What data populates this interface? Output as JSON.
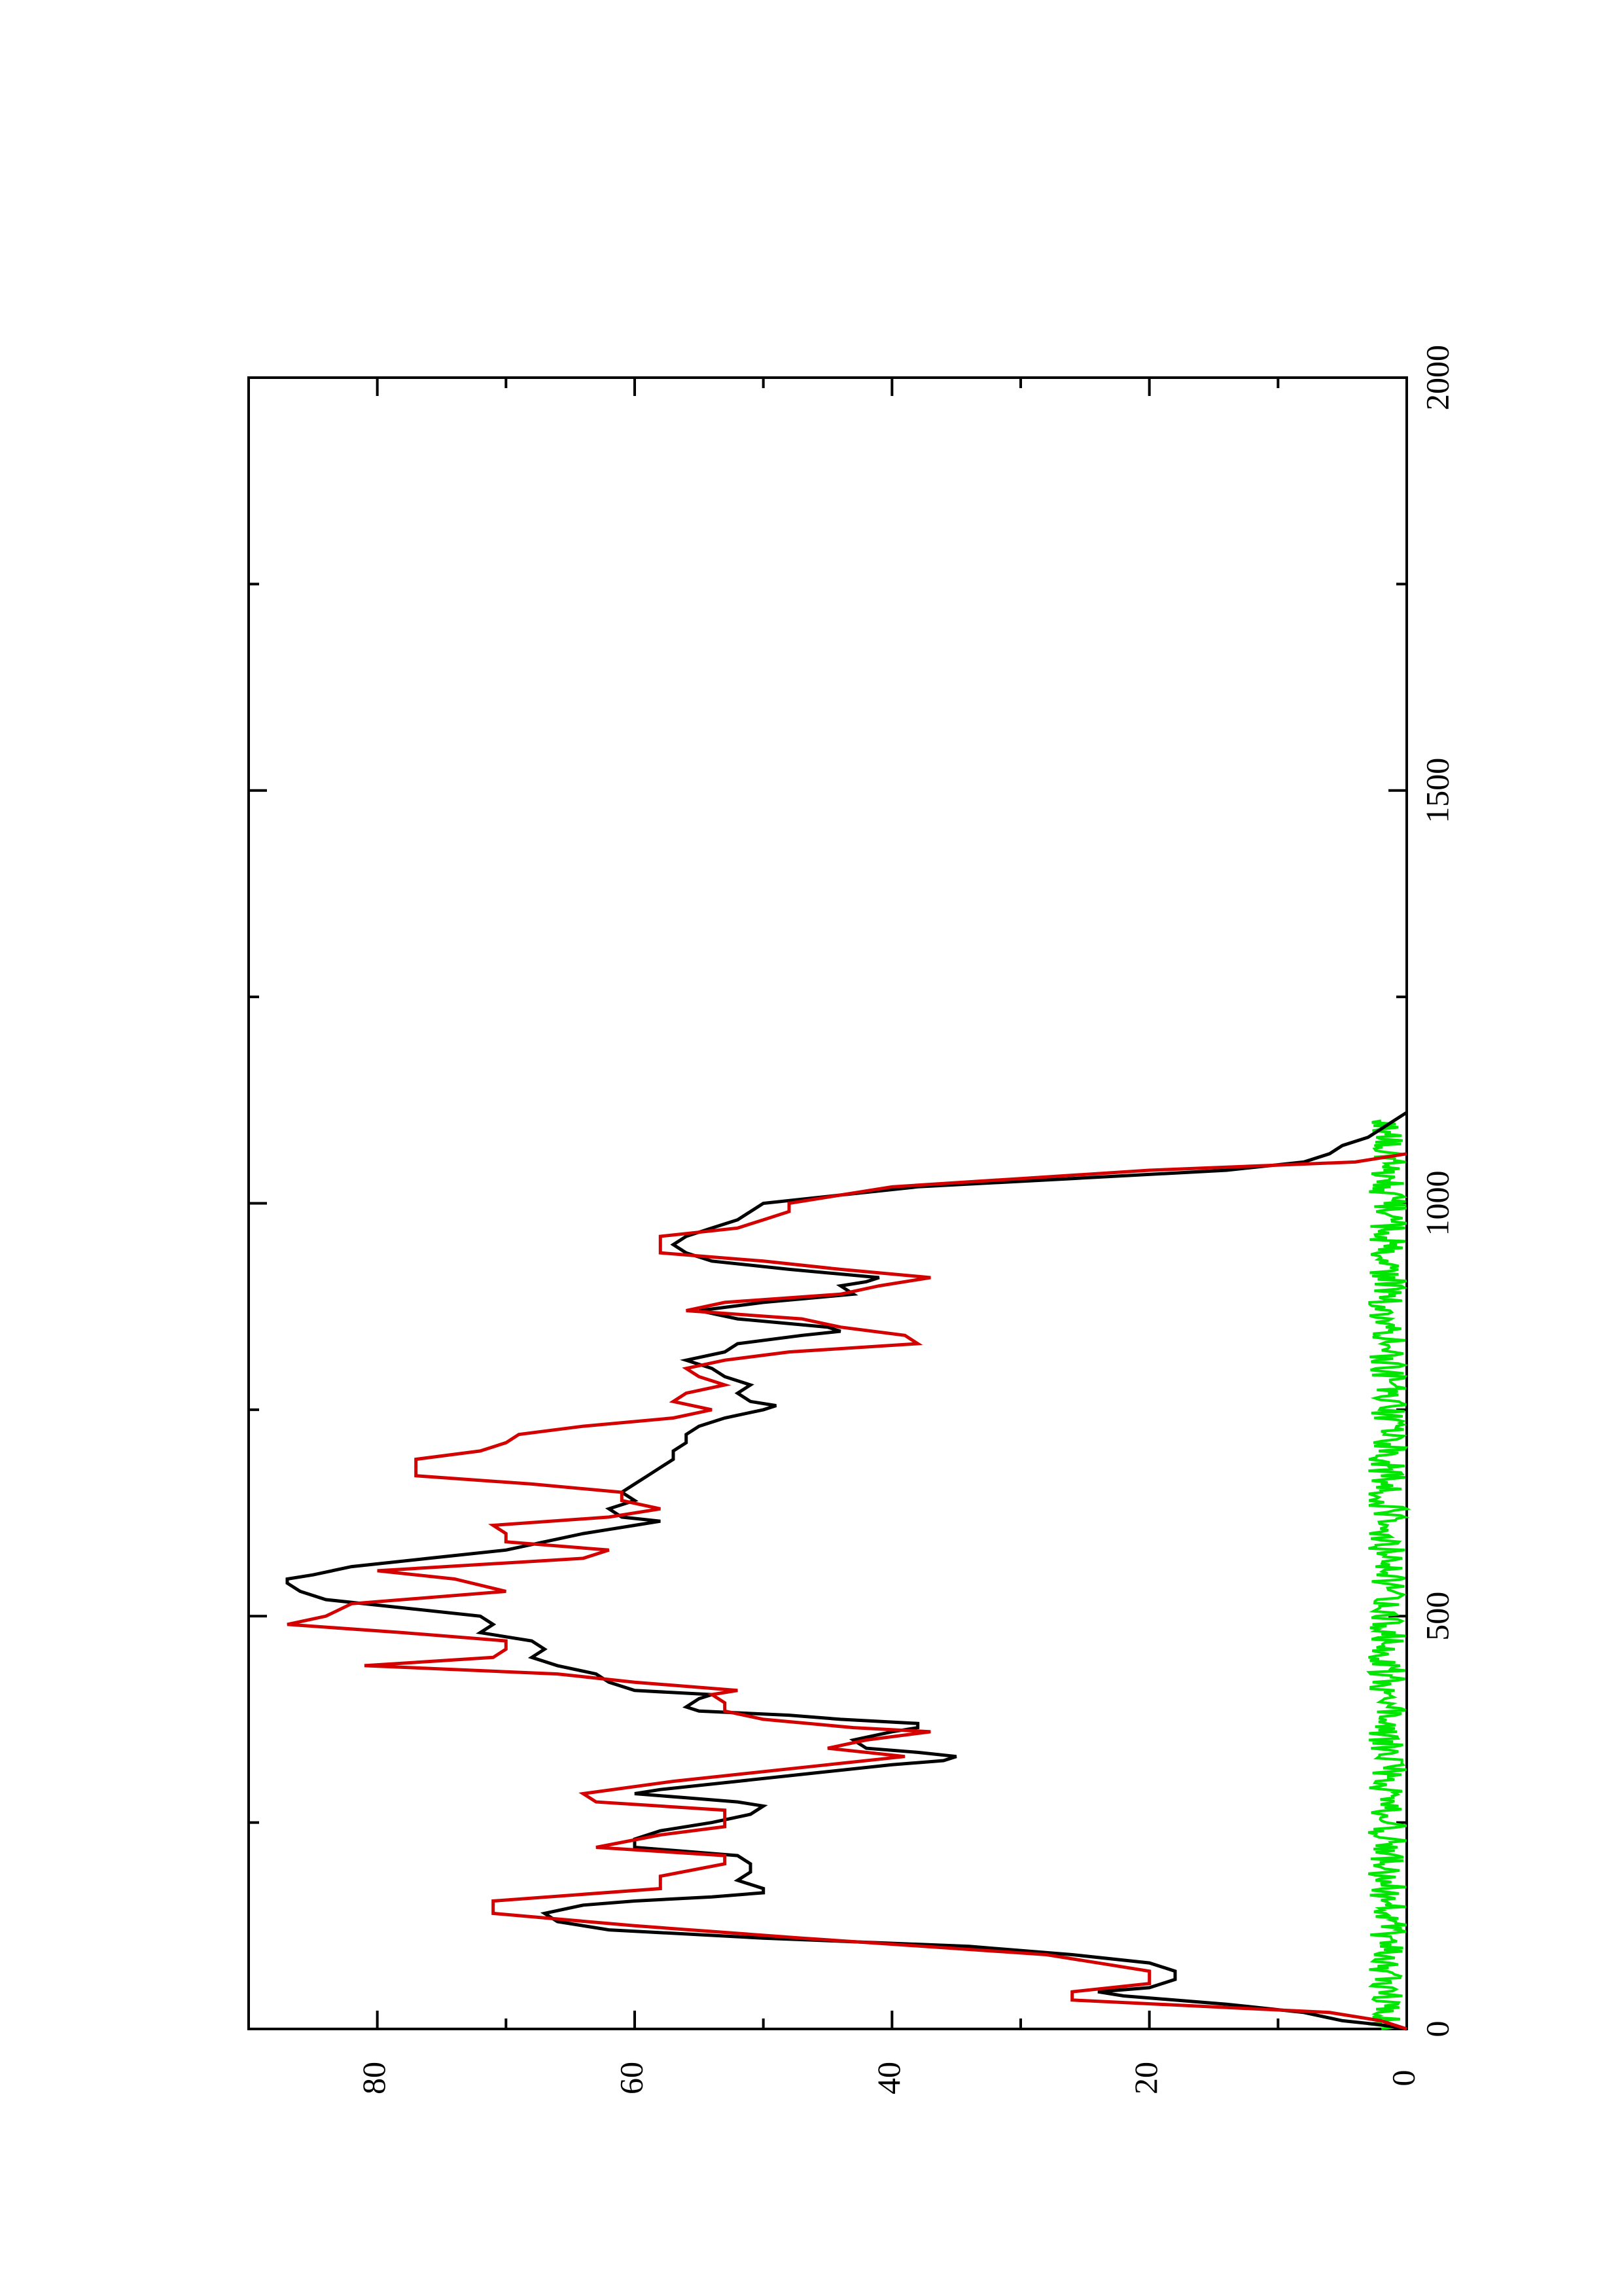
{
  "chart_data": {
    "type": "line",
    "title": "",
    "xlabel": "",
    "ylabel": "",
    "orientation": "rotated 90 degrees counter-clockwise (x axis runs bottom-to-top on the page)",
    "xlim": [
      0,
      2000
    ],
    "ylim": [
      0,
      90
    ],
    "x_ticks": [
      "0",
      "500",
      "1000",
      "1500",
      "2000"
    ],
    "y_ticks": [
      "0",
      "20",
      "40",
      "60",
      "80"
    ],
    "grid": false,
    "legend": "none",
    "series": [
      {
        "color": "#000000",
        "style": "noisy line",
        "points": [
          [
            0,
            0
          ],
          [
            5,
            2
          ],
          [
            10,
            5
          ],
          [
            20,
            8
          ],
          [
            30,
            14
          ],
          [
            40,
            22
          ],
          [
            45,
            24
          ],
          [
            50,
            20
          ],
          [
            60,
            18
          ],
          [
            70,
            18
          ],
          [
            80,
            20
          ],
          [
            90,
            26
          ],
          [
            100,
            34
          ],
          [
            110,
            50
          ],
          [
            120,
            62
          ],
          [
            130,
            66
          ],
          [
            140,
            67
          ],
          [
            150,
            64
          ],
          [
            155,
            60
          ],
          [
            160,
            54
          ],
          [
            165,
            50
          ],
          [
            170,
            50
          ],
          [
            180,
            52
          ],
          [
            190,
            51
          ],
          [
            200,
            51
          ],
          [
            210,
            52
          ],
          [
            215,
            56
          ],
          [
            220,
            60
          ],
          [
            230,
            60
          ],
          [
            240,
            58
          ],
          [
            250,
            54
          ],
          [
            260,
            51
          ],
          [
            270,
            50
          ],
          [
            275,
            52
          ],
          [
            280,
            56
          ],
          [
            285,
            60
          ],
          [
            290,
            58
          ],
          [
            300,
            52
          ],
          [
            310,
            46
          ],
          [
            320,
            40
          ],
          [
            325,
            36
          ],
          [
            330,
            35
          ],
          [
            335,
            38
          ],
          [
            340,
            42
          ],
          [
            350,
            43
          ],
          [
            360,
            40
          ],
          [
            365,
            38
          ],
          [
            370,
            38
          ],
          [
            375,
            44
          ],
          [
            380,
            48
          ],
          [
            385,
            55
          ],
          [
            390,
            56
          ],
          [
            400,
            55
          ],
          [
            405,
            54
          ],
          [
            410,
            60
          ],
          [
            420,
            62
          ],
          [
            430,
            63
          ],
          [
            440,
            66
          ],
          [
            450,
            68
          ],
          [
            460,
            67
          ],
          [
            470,
            68
          ],
          [
            480,
            72
          ],
          [
            490,
            71
          ],
          [
            500,
            72
          ],
          [
            510,
            78
          ],
          [
            520,
            84
          ],
          [
            530,
            86
          ],
          [
            540,
            87
          ],
          [
            545,
            87
          ],
          [
            550,
            85
          ],
          [
            560,
            82
          ],
          [
            570,
            76
          ],
          [
            580,
            70
          ],
          [
            590,
            67
          ],
          [
            600,
            64
          ],
          [
            605,
            62
          ],
          [
            610,
            60
          ],
          [
            615,
            58
          ],
          [
            620,
            61
          ],
          [
            630,
            62
          ],
          [
            640,
            60
          ],
          [
            650,
            61
          ],
          [
            660,
            60
          ],
          [
            670,
            59
          ],
          [
            680,
            58
          ],
          [
            690,
            57
          ],
          [
            700,
            57
          ],
          [
            710,
            56
          ],
          [
            720,
            56
          ],
          [
            730,
            55
          ],
          [
            740,
            53
          ],
          [
            750,
            50
          ],
          [
            755,
            49
          ],
          [
            760,
            51
          ],
          [
            770,
            52
          ],
          [
            780,
            51
          ],
          [
            790,
            53
          ],
          [
            800,
            54
          ],
          [
            810,
            56
          ],
          [
            820,
            53
          ],
          [
            830,
            52
          ],
          [
            840,
            47
          ],
          [
            845,
            44
          ],
          [
            850,
            45
          ],
          [
            860,
            52
          ],
          [
            870,
            55
          ],
          [
            880,
            50
          ],
          [
            890,
            43
          ],
          [
            900,
            44
          ],
          [
            905,
            42
          ],
          [
            910,
            41
          ],
          [
            920,
            48
          ],
          [
            930,
            54
          ],
          [
            940,
            56
          ],
          [
            950,
            57
          ],
          [
            960,
            56
          ],
          [
            970,
            54
          ],
          [
            980,
            52
          ],
          [
            990,
            51
          ],
          [
            1000,
            50
          ],
          [
            1010,
            44
          ],
          [
            1020,
            38
          ],
          [
            1030,
            26
          ],
          [
            1040,
            14
          ],
          [
            1050,
            8
          ],
          [
            1060,
            6
          ],
          [
            1070,
            5
          ],
          [
            1080,
            3
          ],
          [
            1090,
            2
          ],
          [
            1100,
            1
          ],
          [
            1110,
            0
          ]
        ]
      },
      {
        "color": "#d40000",
        "style": "step line",
        "points": [
          [
            0,
            0
          ],
          [
            10,
            2
          ],
          [
            20,
            6
          ],
          [
            35,
            26
          ],
          [
            45,
            26
          ],
          [
            55,
            20
          ],
          [
            70,
            20
          ],
          [
            90,
            28
          ],
          [
            110,
            47
          ],
          [
            125,
            60
          ],
          [
            140,
            71
          ],
          [
            155,
            71
          ],
          [
            170,
            58
          ],
          [
            185,
            58
          ],
          [
            200,
            53
          ],
          [
            210,
            53
          ],
          [
            220,
            63
          ],
          [
            235,
            58
          ],
          [
            245,
            53
          ],
          [
            265,
            53
          ],
          [
            275,
            63
          ],
          [
            285,
            64
          ],
          [
            300,
            57
          ],
          [
            320,
            45
          ],
          [
            330,
            39
          ],
          [
            340,
            45
          ],
          [
            350,
            42
          ],
          [
            360,
            37
          ],
          [
            365,
            43
          ],
          [
            375,
            50
          ],
          [
            385,
            53
          ],
          [
            395,
            53
          ],
          [
            405,
            54
          ],
          [
            410,
            52
          ],
          [
            420,
            60
          ],
          [
            430,
            66
          ],
          [
            440,
            81
          ],
          [
            450,
            71
          ],
          [
            460,
            70
          ],
          [
            470,
            70
          ],
          [
            480,
            78
          ],
          [
            490,
            87
          ],
          [
            500,
            84
          ],
          [
            515,
            82
          ],
          [
            530,
            70
          ],
          [
            545,
            74
          ],
          [
            555,
            80
          ],
          [
            570,
            64
          ],
          [
            580,
            62
          ],
          [
            590,
            70
          ],
          [
            600,
            70
          ],
          [
            610,
            71
          ],
          [
            620,
            62
          ],
          [
            630,
            58
          ],
          [
            640,
            61
          ],
          [
            650,
            61
          ],
          [
            660,
            68
          ],
          [
            670,
            77
          ],
          [
            680,
            77
          ],
          [
            690,
            77
          ],
          [
            700,
            72
          ],
          [
            710,
            70
          ],
          [
            720,
            69
          ],
          [
            730,
            64
          ],
          [
            740,
            57
          ],
          [
            750,
            54
          ],
          [
            760,
            57
          ],
          [
            770,
            56
          ],
          [
            780,
            53
          ],
          [
            790,
            55
          ],
          [
            800,
            56
          ],
          [
            810,
            53
          ],
          [
            820,
            48
          ],
          [
            830,
            38
          ],
          [
            840,
            39
          ],
          [
            850,
            44
          ],
          [
            860,
            47
          ],
          [
            870,
            56
          ],
          [
            880,
            53
          ],
          [
            890,
            44
          ],
          [
            900,
            41
          ],
          [
            910,
            37
          ],
          [
            920,
            44
          ],
          [
            930,
            50
          ],
          [
            940,
            58
          ],
          [
            960,
            58
          ],
          [
            970,
            52
          ],
          [
            980,
            50
          ],
          [
            990,
            48
          ],
          [
            1000,
            48
          ],
          [
            1010,
            44
          ],
          [
            1020,
            40
          ],
          [
            1030,
            30
          ],
          [
            1040,
            20
          ],
          [
            1050,
            4
          ],
          [
            1060,
            0
          ]
        ]
      },
      {
        "color": "#00e600",
        "style": "noise band near zero",
        "range_x": [
          0,
          1100
        ],
        "amplitude": 1.5
      }
    ]
  }
}
